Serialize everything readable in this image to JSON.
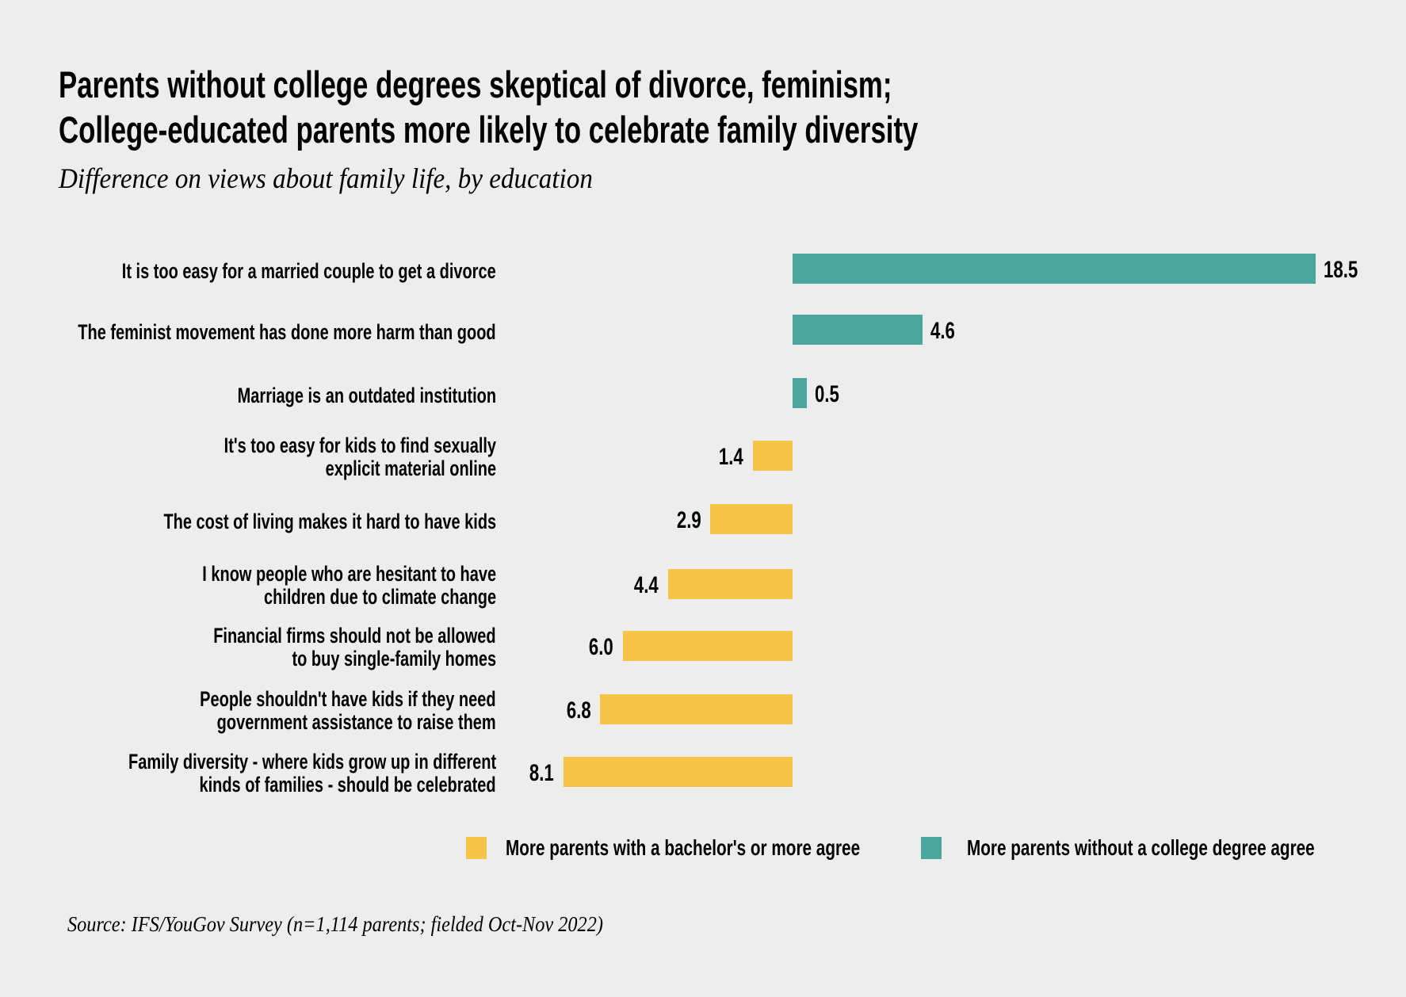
{
  "chart_data": {
    "type": "bar",
    "orientation": "horizontal",
    "title": [
      "Parents without college degrees skeptical of divorce, feminism;",
      "College-educated parents more likely to celebrate family diversity"
    ],
    "subtitle": "Difference on views about family life, by education",
    "categories": [
      [
        "It is too easy for a married couple to get a divorce"
      ],
      [
        "The feminist movement has done more harm than good"
      ],
      [
        "Marriage is an outdated institution"
      ],
      [
        "It's too easy for kids to find sexually",
        "explicit material online"
      ],
      [
        "The cost of living makes it hard to have kids"
      ],
      [
        "I know people who are hesitant to have",
        "children due to climate change"
      ],
      [
        "Financial firms should not be allowed",
        "to buy single-family homes"
      ],
      [
        "People shouldn't have kids if they need",
        "government assistance to raise them"
      ],
      [
        "Family diversity - where kids grow up in different",
        "kinds of families - should be celebrated"
      ]
    ],
    "values": [
      18.5,
      4.6,
      0.5,
      -1.4,
      -2.9,
      -4.4,
      -6.0,
      -6.8,
      -8.1
    ],
    "value_labels": [
      "18.5",
      "4.6",
      "0.5",
      "1.4",
      "2.9",
      "4.4",
      "6.0",
      "6.8",
      "8.1"
    ],
    "series": [
      {
        "name": "More parents with a bachelor's or more agree",
        "color": "#f5c447"
      },
      {
        "name": "More parents without a college degree agree",
        "color": "#4ba6a0"
      }
    ],
    "legend_position": "bottom-right",
    "grid": false,
    "source": "Source: IFS/YouGov Survey (n=1,114 parents; fielded Oct-Nov 2022)"
  }
}
